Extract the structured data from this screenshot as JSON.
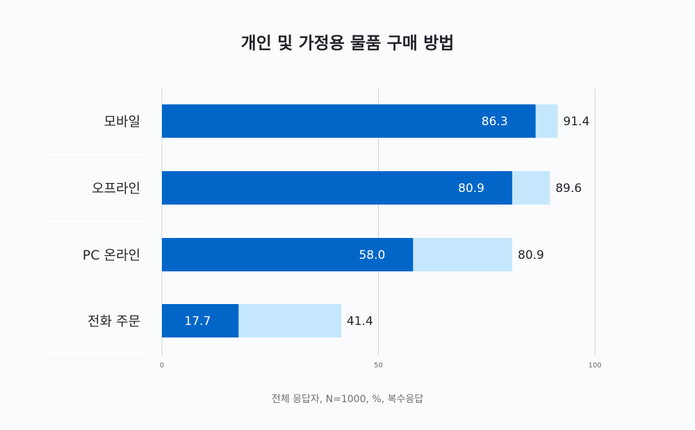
{
  "chart_data": {
    "type": "bar",
    "orientation": "horizontal",
    "title": "개인 및 가정용 물품 구매 방법",
    "footnote": "전체 응답자, N=1000, %, 복수응답",
    "categories": [
      "모바일",
      "오프라인",
      "PC 온라인",
      "전화 주문"
    ],
    "series": [
      {
        "values": [
          86.3,
          80.9,
          58.0,
          17.7
        ],
        "labels": [
          "86.3",
          "80.9",
          "58.0",
          "17.7"
        ],
        "color": "#0266c8"
      },
      {
        "values": [
          91.4,
          89.6,
          80.9,
          41.4
        ],
        "labels": [
          "91.4",
          "89.6",
          "80.9",
          "41.4"
        ],
        "color": "#c5e7fd"
      }
    ],
    "xlim": [
      0,
      100
    ],
    "xticks": [
      "0",
      "50",
      "100"
    ],
    "grid": true
  }
}
